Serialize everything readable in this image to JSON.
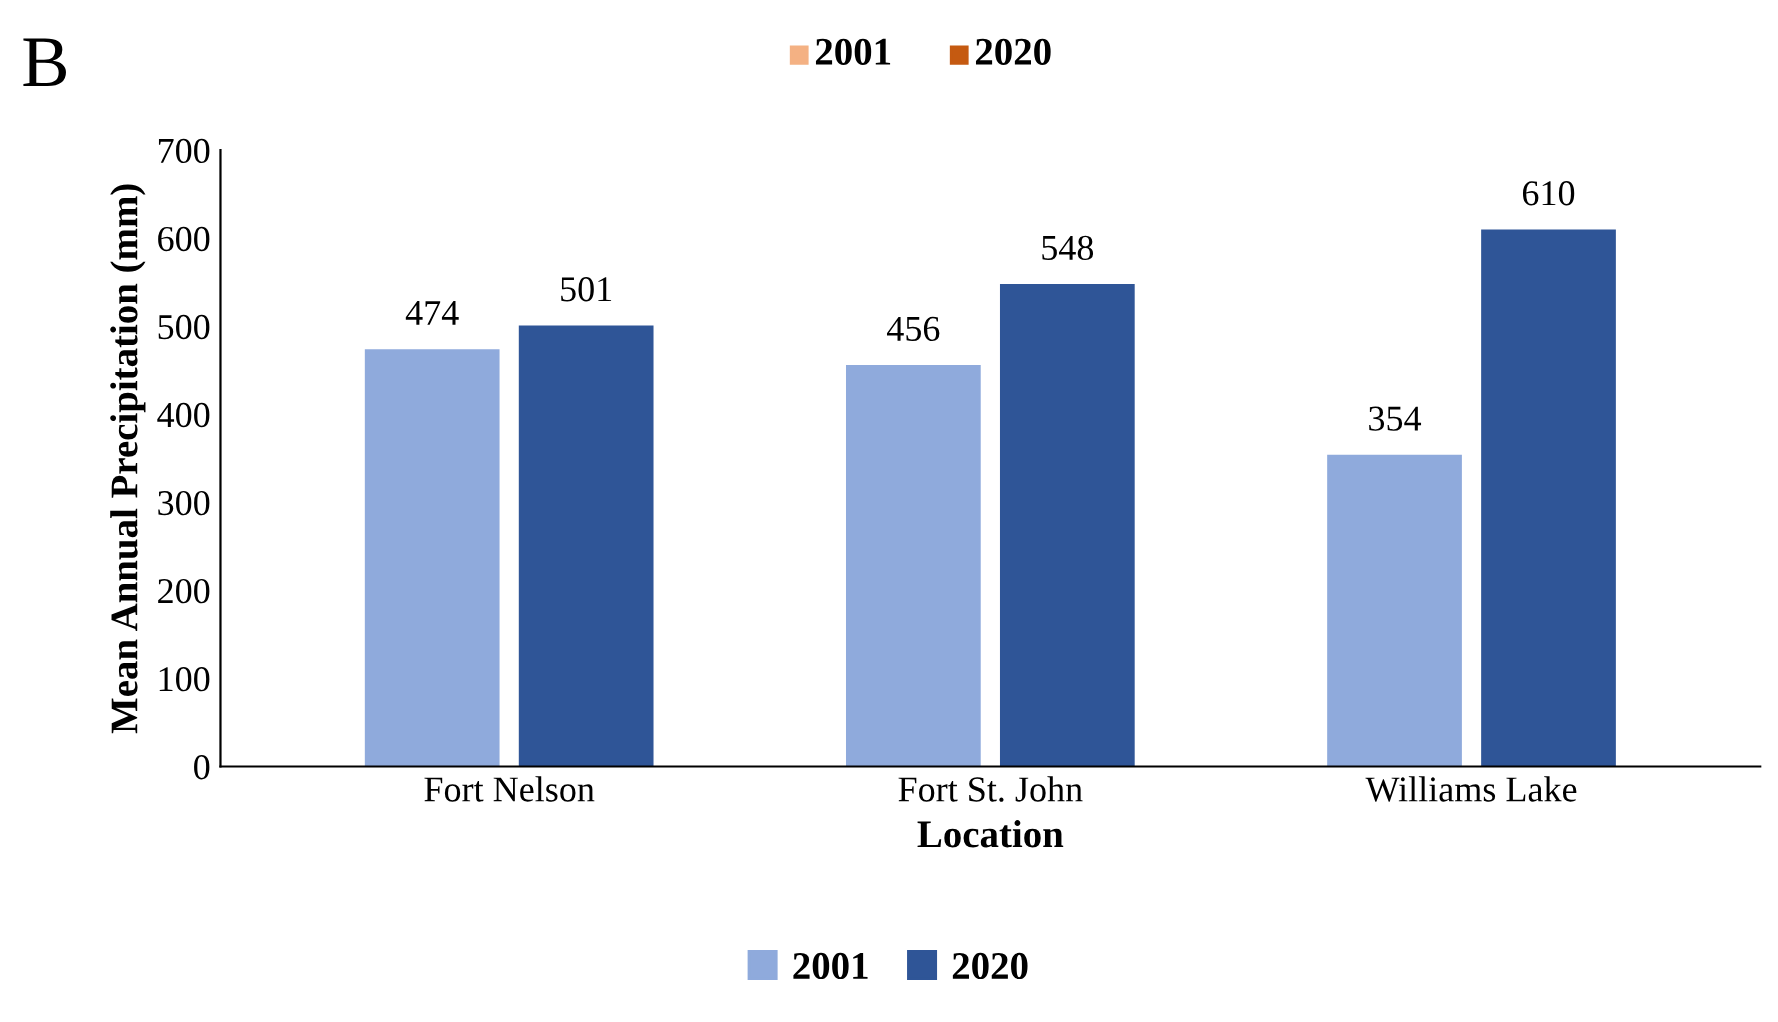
{
  "chart_data": {
    "type": "bar",
    "xlabel": "Location",
    "ylabel": "Mean Annual Precipitation (mm)",
    "categories": [
      "Fort Nelson",
      "Fort St. John",
      "Williams Lake"
    ],
    "series": [
      {
        "name": "2001",
        "color": "#8faadc",
        "values": [
          474,
          456,
          354
        ]
      },
      {
        "name": "2020",
        "color": "#2f5597",
        "values": [
          501,
          548,
          610
        ]
      }
    ],
    "ylim": [
      0,
      700
    ],
    "yticks": [
      0,
      100,
      200,
      300,
      400,
      500,
      600,
      700
    ],
    "grid": false,
    "legend": "bottom",
    "data_labels": true,
    "annotations": [
      "B",
      "2001",
      "2020"
    ]
  }
}
